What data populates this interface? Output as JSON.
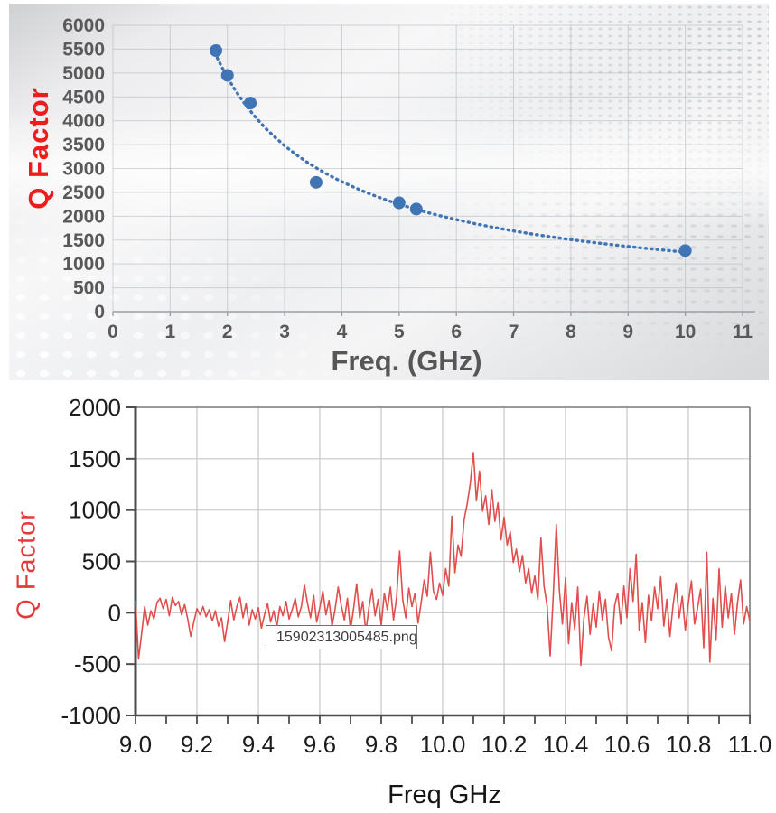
{
  "colors": {
    "scatter_point": "#3f74b5",
    "trend_line": "#3f74b5",
    "noise_line": "#e24d4d",
    "top_tick_text": "#595959",
    "top_grid": "#a8adb4",
    "bottom_grid": "#c9c9c9",
    "bottom_spine": "#4d4d4d",
    "top_ylabel": "#ee1c1c",
    "bottom_ylabel": "#e03c3c"
  },
  "chart_data": [
    {
      "type": "scatter",
      "title": "",
      "xlabel": "Freq.  (GHz)",
      "ylabel": "Q Factor",
      "xlim": [
        0,
        11
      ],
      "ylim": [
        0,
        6000
      ],
      "xticks": [
        0,
        1,
        2,
        3,
        4,
        5,
        6,
        7,
        8,
        9,
        10,
        11
      ],
      "yticks": [
        0,
        500,
        1000,
        1500,
        2000,
        2500,
        3000,
        3500,
        4000,
        4500,
        5000,
        5500,
        6000
      ],
      "grid": true,
      "points": [
        [
          1.8,
          5470
        ],
        [
          2.0,
          4950
        ],
        [
          2.4,
          4370
        ],
        [
          3.55,
          2710
        ],
        [
          5.0,
          2280
        ],
        [
          5.3,
          2150
        ],
        [
          10.0,
          1280
        ]
      ],
      "trendline": {
        "style": "dotted",
        "model": "power",
        "a": 8860,
        "b": -0.851,
        "x_start": 1.78,
        "x_end": 10.05
      }
    },
    {
      "type": "line",
      "title": "",
      "xlabel": "Freq GHz",
      "ylabel": "Q Factor",
      "xlim": [
        9.0,
        11.0
      ],
      "ylim": [
        -1000,
        2000
      ],
      "xtick_labels": [
        "9.0",
        "9.2",
        "9.4",
        "9.6",
        "9.8",
        "10.0",
        "10.2",
        "10.4",
        "10.6",
        "10.8",
        "11.0"
      ],
      "xticks": [
        9.0,
        9.2,
        9.4,
        9.6,
        9.8,
        10.0,
        10.2,
        10.4,
        10.6,
        10.8,
        11.0
      ],
      "minor_xtick_step": 0.1,
      "yticks": [
        -1000,
        -500,
        0,
        500,
        1000,
        1500,
        2000
      ],
      "grid": true,
      "annotation": {
        "text": "15902313005485.png"
      },
      "series": [
        [
          9.0,
          120
        ],
        [
          9.01,
          -450
        ],
        [
          9.02,
          -200
        ],
        [
          9.03,
          60
        ],
        [
          9.04,
          -120
        ],
        [
          9.05,
          20
        ],
        [
          9.06,
          -60
        ],
        [
          9.07,
          100
        ],
        [
          9.08,
          140
        ],
        [
          9.09,
          40
        ],
        [
          9.1,
          130
        ],
        [
          9.11,
          -30
        ],
        [
          9.12,
          150
        ],
        [
          9.13,
          70
        ],
        [
          9.14,
          110
        ],
        [
          9.15,
          -20
        ],
        [
          9.16,
          80
        ],
        [
          9.17,
          -60
        ],
        [
          9.18,
          -230
        ],
        [
          9.19,
          -90
        ],
        [
          9.2,
          40
        ],
        [
          9.21,
          -20
        ],
        [
          9.22,
          60
        ],
        [
          9.23,
          -40
        ],
        [
          9.24,
          30
        ],
        [
          9.25,
          -80
        ],
        [
          9.26,
          20
        ],
        [
          9.27,
          -130
        ],
        [
          9.28,
          -50
        ],
        [
          9.29,
          -280
        ],
        [
          9.3,
          -90
        ],
        [
          9.31,
          120
        ],
        [
          9.32,
          -70
        ],
        [
          9.33,
          60
        ],
        [
          9.34,
          150
        ],
        [
          9.35,
          -50
        ],
        [
          9.36,
          90
        ],
        [
          9.37,
          -120
        ],
        [
          9.38,
          30
        ],
        [
          9.39,
          -60
        ],
        [
          9.4,
          50
        ],
        [
          9.41,
          -150
        ],
        [
          9.42,
          -20
        ],
        [
          9.43,
          90
        ],
        [
          9.44,
          -90
        ],
        [
          9.45,
          20
        ],
        [
          9.46,
          -140
        ],
        [
          9.47,
          60
        ],
        [
          9.48,
          -30
        ],
        [
          9.49,
          110
        ],
        [
          9.5,
          -60
        ],
        [
          9.51,
          30
        ],
        [
          9.52,
          140
        ],
        [
          9.53,
          -40
        ],
        [
          9.54,
          60
        ],
        [
          9.55,
          270
        ],
        [
          9.56,
          90
        ],
        [
          9.57,
          -50
        ],
        [
          9.58,
          170
        ],
        [
          9.59,
          -90
        ],
        [
          9.6,
          50
        ],
        [
          9.61,
          210
        ],
        [
          9.62,
          -20
        ],
        [
          9.63,
          120
        ],
        [
          9.64,
          -130
        ],
        [
          9.65,
          40
        ],
        [
          9.66,
          250
        ],
        [
          9.67,
          70
        ],
        [
          9.68,
          -70
        ],
        [
          9.69,
          140
        ],
        [
          9.7,
          -170
        ],
        [
          9.71,
          40
        ],
        [
          9.72,
          280
        ],
        [
          9.73,
          -50
        ],
        [
          9.74,
          110
        ],
        [
          9.75,
          -190
        ],
        [
          9.76,
          50
        ],
        [
          9.77,
          230
        ],
        [
          9.78,
          -30
        ],
        [
          9.79,
          130
        ],
        [
          9.8,
          -120
        ],
        [
          9.81,
          190
        ],
        [
          9.82,
          30
        ],
        [
          9.83,
          250
        ],
        [
          9.84,
          -70
        ],
        [
          9.85,
          150
        ],
        [
          9.86,
          600
        ],
        [
          9.87,
          130
        ],
        [
          9.88,
          -50
        ],
        [
          9.89,
          240
        ],
        [
          9.9,
          60
        ],
        [
          9.91,
          190
        ],
        [
          9.92,
          -100
        ],
        [
          9.93,
          100
        ],
        [
          9.94,
          320
        ],
        [
          9.95,
          160
        ],
        [
          9.96,
          590
        ],
        [
          9.97,
          210
        ],
        [
          9.98,
          130
        ],
        [
          9.99,
          290
        ],
        [
          10.0,
          170
        ],
        [
          10.01,
          430
        ],
        [
          10.02,
          260
        ],
        [
          10.03,
          940
        ],
        [
          10.04,
          390
        ],
        [
          10.05,
          660
        ],
        [
          10.06,
          550
        ],
        [
          10.07,
          910
        ],
        [
          10.08,
          1060
        ],
        [
          10.09,
          1260
        ],
        [
          10.1,
          1560
        ],
        [
          10.11,
          1090
        ],
        [
          10.12,
          1380
        ],
        [
          10.13,
          990
        ],
        [
          10.14,
          1140
        ],
        [
          10.15,
          860
        ],
        [
          10.16,
          1200
        ],
        [
          10.17,
          890
        ],
        [
          10.18,
          1070
        ],
        [
          10.19,
          710
        ],
        [
          10.2,
          930
        ],
        [
          10.21,
          660
        ],
        [
          10.22,
          790
        ],
        [
          10.23,
          490
        ],
        [
          10.24,
          620
        ],
        [
          10.25,
          400
        ],
        [
          10.26,
          560
        ],
        [
          10.27,
          290
        ],
        [
          10.28,
          430
        ],
        [
          10.29,
          190
        ],
        [
          10.3,
          360
        ],
        [
          10.31,
          130
        ],
        [
          10.32,
          730
        ],
        [
          10.33,
          260
        ],
        [
          10.34,
          70
        ],
        [
          10.35,
          -420
        ],
        [
          10.36,
          160
        ],
        [
          10.37,
          860
        ],
        [
          10.38,
          220
        ],
        [
          10.39,
          -110
        ],
        [
          10.4,
          340
        ],
        [
          10.41,
          -300
        ],
        [
          10.42,
          100
        ],
        [
          10.43,
          -160
        ],
        [
          10.44,
          250
        ],
        [
          10.45,
          -510
        ],
        [
          10.46,
          -50
        ],
        [
          10.47,
          160
        ],
        [
          10.48,
          -210
        ],
        [
          10.49,
          90
        ],
        [
          10.5,
          -140
        ],
        [
          10.51,
          210
        ],
        [
          10.52,
          -70
        ],
        [
          10.53,
          130
        ],
        [
          10.54,
          -240
        ],
        [
          10.55,
          -370
        ],
        [
          10.56,
          70
        ],
        [
          10.57,
          190
        ],
        [
          10.58,
          -110
        ],
        [
          10.59,
          260
        ],
        [
          10.6,
          -50
        ],
        [
          10.61,
          430
        ],
        [
          10.62,
          110
        ],
        [
          10.63,
          570
        ],
        [
          10.64,
          -170
        ],
        [
          10.65,
          100
        ],
        [
          10.66,
          -290
        ],
        [
          10.67,
          170
        ],
        [
          10.68,
          -80
        ],
        [
          10.69,
          250
        ],
        [
          10.7,
          40
        ],
        [
          10.71,
          350
        ],
        [
          10.72,
          -130
        ],
        [
          10.73,
          130
        ],
        [
          10.74,
          -230
        ],
        [
          10.75,
          70
        ],
        [
          10.76,
          290
        ],
        [
          10.77,
          -50
        ],
        [
          10.78,
          160
        ],
        [
          10.79,
          -170
        ],
        [
          10.8,
          100
        ],
        [
          10.81,
          310
        ],
        [
          10.82,
          -110
        ],
        [
          10.83,
          50
        ],
        [
          10.84,
          230
        ],
        [
          10.85,
          -340
        ],
        [
          10.86,
          590
        ],
        [
          10.87,
          -480
        ],
        [
          10.88,
          140
        ],
        [
          10.89,
          -270
        ],
        [
          10.9,
          430
        ],
        [
          10.91,
          -140
        ],
        [
          10.92,
          260
        ],
        [
          10.93,
          -50
        ],
        [
          10.94,
          190
        ],
        [
          10.95,
          -210
        ],
        [
          10.96,
          100
        ],
        [
          10.97,
          320
        ],
        [
          10.98,
          -110
        ],
        [
          10.99,
          60
        ],
        [
          11.0,
          -80
        ]
      ]
    }
  ]
}
